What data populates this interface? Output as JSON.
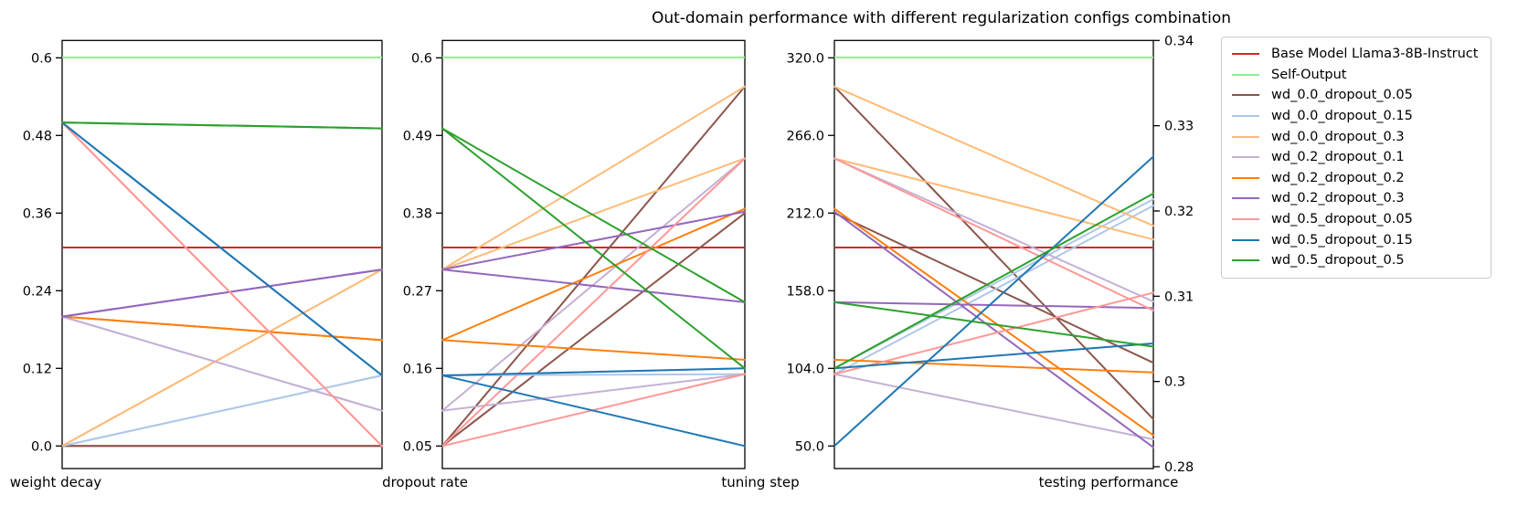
{
  "title": "Out-domain performance with different regularization configs combination",
  "colors": {
    "background": "#ffffff",
    "spine": "#000000",
    "legend_border": "#cccccc",
    "base_model": "#d62728",
    "self_output": "#90ee90"
  },
  "legend": {
    "entries": [
      {
        "label": "Base Model Llama3-8B-Instruct",
        "color": "#d62728"
      },
      {
        "label": "Self-Output",
        "color": "#90ee90"
      },
      {
        "label": "wd_0.0_dropout_0.05",
        "color": "#8c564b"
      },
      {
        "label": "wd_0.0_dropout_0.15",
        "color": "#aec7e8"
      },
      {
        "label": "wd_0.0_dropout_0.3",
        "color": "#ffbb78"
      },
      {
        "label": "wd_0.2_dropout_0.1",
        "color": "#c5b0d5"
      },
      {
        "label": "wd_0.2_dropout_0.2",
        "color": "#ff7f0e"
      },
      {
        "label": "wd_0.2_dropout_0.3",
        "color": "#9467bd"
      },
      {
        "label": "wd_0.5_dropout_0.05",
        "color": "#ff9896"
      },
      {
        "label": "wd_0.5_dropout_0.15",
        "color": "#1f77b4"
      },
      {
        "label": "wd_0.5_dropout_0.5",
        "color": "#2ca02c"
      }
    ]
  },
  "chart_data": {
    "type": "parallel-coordinates",
    "title": "Out-domain performance with different regularization configs combination",
    "grid": false,
    "legend_position": "upper right outside",
    "axes": [
      {
        "id": "weight_decay",
        "label": "weight decay",
        "min": 0.0,
        "max": 0.6,
        "ticks": [
          {
            "value": 0.0,
            "label": "0.0"
          },
          {
            "value": 0.12,
            "label": "0.12"
          },
          {
            "value": 0.24,
            "label": "0.24"
          },
          {
            "value": 0.36,
            "label": "0.36"
          },
          {
            "value": 0.48,
            "label": "0.48"
          },
          {
            "value": 0.6,
            "label": "0.6"
          }
        ]
      },
      {
        "id": "dropout_rate",
        "label": "dropout rate",
        "min": 0.05,
        "max": 0.6,
        "ticks": [
          {
            "value": 0.05,
            "label": "0.05"
          },
          {
            "value": 0.16,
            "label": "0.16"
          },
          {
            "value": 0.27,
            "label": "0.27"
          },
          {
            "value": 0.38,
            "label": "0.38"
          },
          {
            "value": 0.49,
            "label": "0.49"
          },
          {
            "value": 0.6,
            "label": "0.6"
          }
        ]
      },
      {
        "id": "tuning_step",
        "label": "tuning step",
        "min": 50,
        "max": 320,
        "ticks": [
          {
            "value": 50,
            "label": "50.0"
          },
          {
            "value": 104,
            "label": "104.0"
          },
          {
            "value": 158,
            "label": "158.0"
          },
          {
            "value": 212,
            "label": "212.0"
          },
          {
            "value": 266,
            "label": "266.0"
          },
          {
            "value": 320,
            "label": "320.0"
          }
        ]
      },
      {
        "id": "testing_performance",
        "label": "testing performance",
        "min": 0.2846,
        "max": 0.3375,
        "side": "right",
        "ticks": [
          {
            "value": 0.2846,
            "label": "0.28"
          },
          {
            "value": 0.29518,
            "label": "0.3"
          },
          {
            "value": 0.30576,
            "label": "0.31"
          },
          {
            "value": 0.31634,
            "label": "0.32"
          },
          {
            "value": 0.32692,
            "label": "0.33"
          },
          {
            "value": 0.3375,
            "label": "0.34"
          }
        ]
      }
    ],
    "baselines": [
      {
        "name": "Base Model Llama3-8B-Instruct",
        "color": "#d62728",
        "testing_performance": 0.3118
      },
      {
        "name": "Self-Output",
        "color": "#90ee90",
        "testing_performance": 0.3354
      }
    ],
    "series": [
      {
        "name": "wd_0.0_dropout_0.05",
        "color": "#8c564b",
        "runs": [
          {
            "weight_decay": 0.0,
            "dropout_rate": 0.05,
            "tuning_step": 300,
            "testing_performance": 0.2905
          },
          {
            "weight_decay": 0.0,
            "dropout_rate": 0.05,
            "tuning_step": 212,
            "testing_performance": 0.2975
          }
        ]
      },
      {
        "name": "wd_0.0_dropout_0.15",
        "color": "#aec7e8",
        "runs": [
          {
            "weight_decay": 0.0,
            "dropout_rate": 0.15,
            "tuning_step": 104,
            "testing_performance": 0.3178
          },
          {
            "weight_decay": 0.0,
            "dropout_rate": 0.15,
            "tuning_step": 100,
            "testing_performance": 0.317
          }
        ]
      },
      {
        "name": "wd_0.0_dropout_0.3",
        "color": "#ffbb78",
        "runs": [
          {
            "weight_decay": 0.0,
            "dropout_rate": 0.3,
            "tuning_step": 300,
            "testing_performance": 0.3145
          },
          {
            "weight_decay": 0.0,
            "dropout_rate": 0.3,
            "tuning_step": 250,
            "testing_performance": 0.3128
          }
        ]
      },
      {
        "name": "wd_0.2_dropout_0.1",
        "color": "#c5b0d5",
        "runs": [
          {
            "weight_decay": 0.2,
            "dropout_rate": 0.1,
            "tuning_step": 250,
            "testing_performance": 0.3051
          },
          {
            "weight_decay": 0.2,
            "dropout_rate": 0.1,
            "tuning_step": 100,
            "testing_performance": 0.288
          }
        ]
      },
      {
        "name": "wd_0.2_dropout_0.2",
        "color": "#ff7f0e",
        "runs": [
          {
            "weight_decay": 0.2,
            "dropout_rate": 0.2,
            "tuning_step": 215,
            "testing_performance": 0.2885
          },
          {
            "weight_decay": 0.2,
            "dropout_rate": 0.2,
            "tuning_step": 110,
            "testing_performance": 0.2963
          }
        ]
      },
      {
        "name": "wd_0.2_dropout_0.3",
        "color": "#9467bd",
        "runs": [
          {
            "weight_decay": 0.2,
            "dropout_rate": 0.3,
            "tuning_step": 213,
            "testing_performance": 0.287
          },
          {
            "weight_decay": 0.2,
            "dropout_rate": 0.3,
            "tuning_step": 150,
            "testing_performance": 0.3043
          }
        ]
      },
      {
        "name": "wd_0.5_dropout_0.05",
        "color": "#ff9896",
        "runs": [
          {
            "weight_decay": 0.5,
            "dropout_rate": 0.05,
            "tuning_step": 250,
            "testing_performance": 0.304
          },
          {
            "weight_decay": 0.5,
            "dropout_rate": 0.05,
            "tuning_step": 100,
            "testing_performance": 0.3062
          }
        ]
      },
      {
        "name": "wd_0.5_dropout_0.15",
        "color": "#1f77b4",
        "runs": [
          {
            "weight_decay": 0.5,
            "dropout_rate": 0.15,
            "tuning_step": 50,
            "testing_performance": 0.3231
          },
          {
            "weight_decay": 0.5,
            "dropout_rate": 0.15,
            "tuning_step": 104,
            "testing_performance": 0.2999
          }
        ]
      },
      {
        "name": "wd_0.5_dropout_0.5",
        "color": "#2ca02c",
        "runs": [
          {
            "weight_decay": 0.5,
            "dropout_rate": 0.5,
            "tuning_step": 104,
            "testing_performance": 0.3185
          },
          {
            "weight_decay": 0.5,
            "dropout_rate": 0.5,
            "tuning_step": 150,
            "testing_performance": 0.2995
          }
        ]
      }
    ]
  }
}
